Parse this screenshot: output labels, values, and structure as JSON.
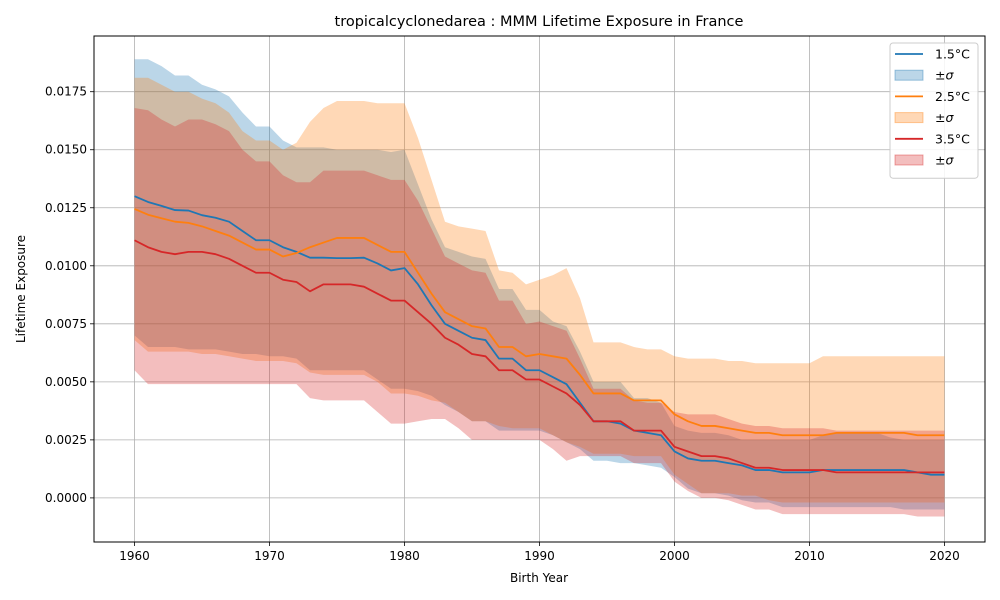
{
  "chart_data": {
    "type": "line",
    "title": "tropicalcyclonedarea : MMM Lifetime Exposure in France",
    "xlabel": "Birth Year",
    "ylabel": "Lifetime Exposure",
    "xlim": [
      1957,
      2023
    ],
    "ylim": [
      -0.0019,
      0.0199
    ],
    "xticks": [
      1960,
      1970,
      1980,
      1990,
      2000,
      2010,
      2020
    ],
    "xtick_labels": [
      "1960",
      "1970",
      "1980",
      "1990",
      "2000",
      "2010",
      "2020"
    ],
    "yticks": [
      0.0,
      0.0025,
      0.005,
      0.0075,
      0.01,
      0.0125,
      0.015,
      0.0175
    ],
    "ytick_labels": [
      "0.0000",
      "0.0025",
      "0.0050",
      "0.0075",
      "0.0100",
      "0.0125",
      "0.0150",
      "0.0175"
    ],
    "grid": true,
    "legend_position": "top-right",
    "x": [
      1960,
      1961,
      1962,
      1963,
      1964,
      1965,
      1966,
      1967,
      1968,
      1969,
      1970,
      1971,
      1972,
      1973,
      1974,
      1975,
      1976,
      1977,
      1978,
      1979,
      1980,
      1981,
      1982,
      1983,
      1984,
      1985,
      1986,
      1987,
      1988,
      1989,
      1990,
      1991,
      1992,
      1993,
      1994,
      1995,
      1996,
      1997,
      1998,
      1999,
      2000,
      2001,
      2002,
      2003,
      2004,
      2005,
      2006,
      2007,
      2008,
      2009,
      2010,
      2011,
      2012,
      2013,
      2014,
      2015,
      2016,
      2017,
      2018,
      2019,
      2020
    ],
    "series": [
      {
        "name": "1.5°C",
        "band_label": "±σ",
        "color": "#1f77b4",
        "fill": "#1f77b4",
        "fill_opacity": 0.3,
        "mean": [
          0.013,
          0.01275,
          0.01258,
          0.0124,
          0.01238,
          0.01218,
          0.01207,
          0.0119,
          0.0115,
          0.0111,
          0.0111,
          0.0108,
          0.0106,
          0.01035,
          0.01035,
          0.01033,
          0.01033,
          0.01035,
          0.0101,
          0.0098,
          0.0099,
          0.0092,
          0.0083,
          0.0075,
          0.0072,
          0.0069,
          0.0068,
          0.006,
          0.006,
          0.0055,
          0.0055,
          0.0052,
          0.0049,
          0.0041,
          0.0033,
          0.0033,
          0.0032,
          0.0029,
          0.0028,
          0.0027,
          0.002,
          0.0017,
          0.0016,
          0.0016,
          0.0015,
          0.0014,
          0.0012,
          0.0012,
          0.0011,
          0.0011,
          0.0011,
          0.0012,
          0.0012,
          0.0012,
          0.0012,
          0.0012,
          0.0012,
          0.0012,
          0.0011,
          0.001,
          0.001
        ],
        "upper": [
          0.0189,
          0.0189,
          0.0186,
          0.0182,
          0.0182,
          0.0178,
          0.0176,
          0.0173,
          0.0166,
          0.016,
          0.016,
          0.0154,
          0.0151,
          0.0151,
          0.0151,
          0.015,
          0.015,
          0.015,
          0.015,
          0.0149,
          0.015,
          0.0135,
          0.012,
          0.0108,
          0.0106,
          0.0104,
          0.0103,
          0.009,
          0.009,
          0.0081,
          0.0081,
          0.0076,
          0.0074,
          0.0063,
          0.005,
          0.005,
          0.005,
          0.0043,
          0.0043,
          0.0041,
          0.0031,
          0.0029,
          0.0028,
          0.0028,
          0.0027,
          0.0025,
          0.0025,
          0.0025,
          0.0025,
          0.0025,
          0.0025,
          0.0027,
          0.0028,
          0.0028,
          0.0028,
          0.0028,
          0.0026,
          0.0025,
          0.0025,
          0.0025,
          0.0025
        ],
        "lower": [
          0.007,
          0.0065,
          0.0065,
          0.0065,
          0.0064,
          0.0064,
          0.0064,
          0.0063,
          0.0062,
          0.0062,
          0.0061,
          0.0061,
          0.006,
          0.0055,
          0.0055,
          0.0055,
          0.0055,
          0.0055,
          0.0051,
          0.0047,
          0.0047,
          0.0046,
          0.0044,
          0.004,
          0.0037,
          0.0033,
          0.0033,
          0.0029,
          0.0029,
          0.0029,
          0.0029,
          0.0027,
          0.0024,
          0.0021,
          0.0016,
          0.0016,
          0.0015,
          0.0015,
          0.0014,
          0.0013,
          0.0009,
          0.0004,
          0.0002,
          0.0002,
          0.0001,
          -0.0001,
          -0.0002,
          -0.0002,
          -0.0004,
          -0.0004,
          -0.0004,
          -0.0004,
          -0.0004,
          -0.0004,
          -0.0004,
          -0.0004,
          -0.0004,
          -0.0005,
          -0.0005,
          -0.0005,
          -0.0005
        ]
      },
      {
        "name": "2.5°C",
        "band_label": "±σ",
        "color": "#ff7f0e",
        "fill": "#ff7f0e",
        "fill_opacity": 0.3,
        "mean": [
          0.01245,
          0.0122,
          0.01205,
          0.0119,
          0.01185,
          0.0117,
          0.0115,
          0.0113,
          0.011,
          0.0107,
          0.0107,
          0.0104,
          0.01055,
          0.0108,
          0.011,
          0.0112,
          0.0112,
          0.0112,
          0.0109,
          0.0106,
          0.0106,
          0.0097,
          0.0088,
          0.008,
          0.0077,
          0.0074,
          0.0073,
          0.0065,
          0.0065,
          0.0061,
          0.0062,
          0.0061,
          0.006,
          0.0053,
          0.0045,
          0.0045,
          0.0045,
          0.0042,
          0.0042,
          0.0042,
          0.0036,
          0.0033,
          0.0031,
          0.0031,
          0.003,
          0.0029,
          0.0028,
          0.0028,
          0.0027,
          0.0027,
          0.0027,
          0.0027,
          0.0028,
          0.0028,
          0.0028,
          0.0028,
          0.0028,
          0.0028,
          0.0027,
          0.0027,
          0.0027
        ],
        "upper": [
          0.0181,
          0.0181,
          0.0178,
          0.0175,
          0.0175,
          0.0172,
          0.017,
          0.0166,
          0.0158,
          0.0154,
          0.0154,
          0.015,
          0.0153,
          0.0162,
          0.0168,
          0.0171,
          0.0171,
          0.0171,
          0.017,
          0.017,
          0.017,
          0.0155,
          0.0137,
          0.0119,
          0.0117,
          0.0116,
          0.0115,
          0.0098,
          0.0097,
          0.0092,
          0.0094,
          0.0096,
          0.0099,
          0.0086,
          0.0067,
          0.0067,
          0.0067,
          0.0065,
          0.0064,
          0.0064,
          0.0061,
          0.006,
          0.006,
          0.006,
          0.0059,
          0.0059,
          0.0058,
          0.0058,
          0.0058,
          0.0058,
          0.0058,
          0.0061,
          0.0061,
          0.0061,
          0.0061,
          0.0061,
          0.0061,
          0.0061,
          0.0061,
          0.0061,
          0.0061
        ],
        "lower": [
          0.0068,
          0.0063,
          0.0063,
          0.0063,
          0.0063,
          0.0062,
          0.0062,
          0.0061,
          0.006,
          0.0059,
          0.0059,
          0.0059,
          0.0058,
          0.0054,
          0.0053,
          0.0053,
          0.0053,
          0.0053,
          0.005,
          0.0045,
          0.0045,
          0.0044,
          0.0042,
          0.0041,
          0.0037,
          0.0033,
          0.0033,
          0.0031,
          0.003,
          0.003,
          0.003,
          0.0027,
          0.0024,
          0.0022,
          0.0019,
          0.0019,
          0.0019,
          0.0018,
          0.0018,
          0.0018,
          0.001,
          0.0006,
          0.0002,
          0.0002,
          0.0002,
          0.0001,
          0.0001,
          -0.0001,
          -0.0002,
          -0.0002,
          -0.0002,
          -0.0002,
          -0.0002,
          -0.0002,
          -0.0002,
          -0.0002,
          -0.0002,
          -0.0002,
          -0.0002,
          -0.0002,
          -0.0002
        ]
      },
      {
        "name": "3.5°C",
        "band_label": "±σ",
        "color": "#d62728",
        "fill": "#d62728",
        "fill_opacity": 0.3,
        "mean": [
          0.0111,
          0.0108,
          0.0106,
          0.0105,
          0.0106,
          0.0106,
          0.0105,
          0.0103,
          0.01,
          0.0097,
          0.0097,
          0.0094,
          0.0093,
          0.0089,
          0.0092,
          0.0092,
          0.0092,
          0.0091,
          0.0088,
          0.0085,
          0.0085,
          0.008,
          0.0075,
          0.0069,
          0.0066,
          0.0062,
          0.0061,
          0.0055,
          0.0055,
          0.0051,
          0.0051,
          0.0048,
          0.0045,
          0.004,
          0.0033,
          0.0033,
          0.0033,
          0.0029,
          0.0029,
          0.0029,
          0.0022,
          0.002,
          0.0018,
          0.0018,
          0.0017,
          0.0015,
          0.0013,
          0.0013,
          0.0012,
          0.0012,
          0.0012,
          0.0012,
          0.0011,
          0.0011,
          0.0011,
          0.0011,
          0.0011,
          0.0011,
          0.0011,
          0.0011,
          0.0011
        ],
        "upper": [
          0.0168,
          0.0167,
          0.0163,
          0.016,
          0.0163,
          0.0163,
          0.0161,
          0.0158,
          0.015,
          0.0145,
          0.0145,
          0.0139,
          0.0136,
          0.0136,
          0.0141,
          0.0141,
          0.0141,
          0.0141,
          0.0139,
          0.0137,
          0.0137,
          0.0128,
          0.0116,
          0.0104,
          0.0101,
          0.0098,
          0.0097,
          0.0085,
          0.0085,
          0.0075,
          0.0076,
          0.0074,
          0.0072,
          0.006,
          0.0047,
          0.0047,
          0.0047,
          0.0042,
          0.0041,
          0.0041,
          0.0037,
          0.0036,
          0.0036,
          0.0036,
          0.0034,
          0.0032,
          0.0031,
          0.0031,
          0.003,
          0.003,
          0.003,
          0.003,
          0.0029,
          0.0029,
          0.0029,
          0.0029,
          0.0029,
          0.0029,
          0.0029,
          0.0029,
          0.0029
        ],
        "lower": [
          0.0055,
          0.0049,
          0.0049,
          0.0049,
          0.0049,
          0.0049,
          0.0049,
          0.0049,
          0.0049,
          0.0049,
          0.0049,
          0.0049,
          0.0049,
          0.0043,
          0.0042,
          0.0042,
          0.0042,
          0.0042,
          0.0037,
          0.0032,
          0.0032,
          0.0033,
          0.0034,
          0.0034,
          0.003,
          0.0025,
          0.0025,
          0.0025,
          0.0025,
          0.0025,
          0.0025,
          0.0021,
          0.0016,
          0.0018,
          0.0018,
          0.0018,
          0.0018,
          0.0015,
          0.0015,
          0.0015,
          0.0007,
          0.0003,
          0.0,
          0.0,
          -0.0001,
          -0.0003,
          -0.0005,
          -0.0005,
          -0.0007,
          -0.0007,
          -0.0007,
          -0.0007,
          -0.0007,
          -0.0007,
          -0.0007,
          -0.0007,
          -0.0007,
          -0.0007,
          -0.0008,
          -0.0008,
          -0.0008
        ]
      }
    ]
  }
}
